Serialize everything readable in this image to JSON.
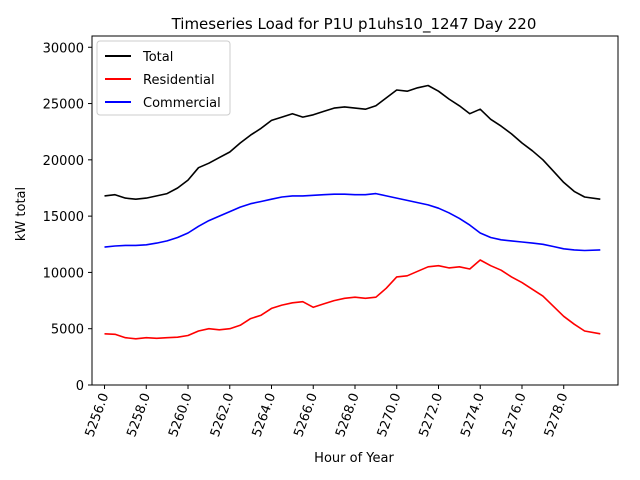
{
  "chart_data": {
    "type": "line",
    "title": "Timeseries Load for P1U p1uhs10_1247  Day 220",
    "xlabel": "Hour of Year",
    "ylabel": "kW total",
    "xlim": [
      5255.4,
      5280.6
    ],
    "ylim": [
      0,
      31000
    ],
    "xticks": [
      5256,
      5258,
      5260,
      5262,
      5264,
      5266,
      5268,
      5270,
      5272,
      5274,
      5276,
      5278
    ],
    "xtick_labels": [
      "5256.0",
      "5258.0",
      "5260.0",
      "5262.0",
      "5264.0",
      "5266.0",
      "5268.0",
      "5270.0",
      "5272.0",
      "5274.0",
      "5276.0",
      "5278.0"
    ],
    "yticks": [
      0,
      5000,
      10000,
      15000,
      20000,
      25000,
      30000
    ],
    "ytick_labels": [
      "0",
      "5000",
      "10000",
      "15000",
      "20000",
      "25000",
      "30000"
    ],
    "grid": false,
    "legend_position": "top-left",
    "series": [
      {
        "name": "Total",
        "color": "#000000",
        "x": [
          5256,
          5256.5,
          5257,
          5257.5,
          5258,
          5258.5,
          5259,
          5259.5,
          5260,
          5260.5,
          5261,
          5261.5,
          5262,
          5262.5,
          5263,
          5263.5,
          5264,
          5264.5,
          5265,
          5265.5,
          5266,
          5266.5,
          5267,
          5267.5,
          5268,
          5268.5,
          5269,
          5269.5,
          5270,
          5270.5,
          5271,
          5271.5,
          5272,
          5272.5,
          5273,
          5273.5,
          5274,
          5274.5,
          5275,
          5275.5,
          5276,
          5276.5,
          5277,
          5277.5,
          5278,
          5278.5,
          5279,
          5279.75
        ],
        "values": [
          16800,
          16900,
          16600,
          16500,
          16600,
          16800,
          17000,
          17500,
          18200,
          19300,
          19700,
          20200,
          20700,
          21500,
          22200,
          22800,
          23500,
          23800,
          24100,
          23800,
          24000,
          24300,
          24600,
          24700,
          24600,
          24500,
          24800,
          25500,
          26200,
          26100,
          26400,
          26600,
          26100,
          25400,
          24800,
          24100,
          24500,
          23600,
          23000,
          22300,
          21500,
          20800,
          20000,
          19000,
          18000,
          17200,
          16700,
          16500
        ]
      },
      {
        "name": "Residential",
        "color": "#ff0000",
        "x": [
          5256,
          5256.5,
          5257,
          5257.5,
          5258,
          5258.5,
          5259,
          5259.5,
          5260,
          5260.5,
          5261,
          5261.5,
          5262,
          5262.5,
          5263,
          5263.5,
          5264,
          5264.5,
          5265,
          5265.5,
          5266,
          5266.5,
          5267,
          5267.5,
          5268,
          5268.5,
          5269,
          5269.5,
          5270,
          5270.5,
          5271,
          5271.5,
          5272,
          5272.5,
          5273,
          5273.5,
          5274,
          5274.5,
          5275,
          5275.5,
          5276,
          5276.5,
          5277,
          5277.5,
          5278,
          5278.5,
          5279,
          5279.75
        ],
        "values": [
          4550,
          4500,
          4200,
          4100,
          4200,
          4150,
          4200,
          4250,
          4400,
          4800,
          5000,
          4900,
          5000,
          5300,
          5900,
          6200,
          6800,
          7100,
          7300,
          7400,
          6900,
          7200,
          7500,
          7700,
          7800,
          7700,
          7800,
          8600,
          9600,
          9700,
          10100,
          10500,
          10600,
          10400,
          10500,
          10300,
          11100,
          10600,
          10200,
          9600,
          9100,
          8500,
          7900,
          7000,
          6100,
          5400,
          4800,
          4550
        ]
      },
      {
        "name": "Commercial",
        "color": "#0000ff",
        "x": [
          5256,
          5256.5,
          5257,
          5257.5,
          5258,
          5258.5,
          5259,
          5259.5,
          5260,
          5260.5,
          5261,
          5261.5,
          5262,
          5262.5,
          5263,
          5263.5,
          5264,
          5264.5,
          5265,
          5265.5,
          5266,
          5266.5,
          5267,
          5267.5,
          5268,
          5268.5,
          5269,
          5269.5,
          5270,
          5270.5,
          5271,
          5271.5,
          5272,
          5272.5,
          5273,
          5273.5,
          5274,
          5274.5,
          5275,
          5275.5,
          5276,
          5276.5,
          5277,
          5277.5,
          5278,
          5278.5,
          5279,
          5279.75
        ],
        "values": [
          12250,
          12350,
          12400,
          12400,
          12450,
          12600,
          12800,
          13100,
          13500,
          14100,
          14600,
          15000,
          15400,
          15800,
          16100,
          16300,
          16500,
          16700,
          16800,
          16800,
          16850,
          16900,
          16950,
          16950,
          16900,
          16900,
          17000,
          16800,
          16600,
          16400,
          16200,
          16000,
          15700,
          15300,
          14800,
          14200,
          13500,
          13100,
          12900,
          12800,
          12700,
          12600,
          12500,
          12300,
          12100,
          12000,
          11950,
          12000
        ]
      }
    ]
  }
}
